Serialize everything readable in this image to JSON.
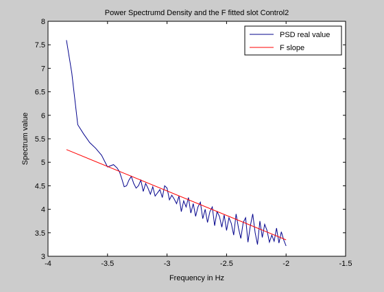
{
  "chart_data": {
    "type": "line",
    "title": "Power Spectrumd Density and the F fitted slot Control2",
    "xlabel": "Frequency in Hz",
    "ylabel": "Spectrum value",
    "xlim": [
      -4,
      -1.5
    ],
    "ylim": [
      3,
      8
    ],
    "x_ticks": [
      -4,
      -3.5,
      -3,
      -2.5,
      -2,
      -1.5
    ],
    "x_tick_labels": [
      "-4",
      "-3.5",
      "-3",
      "-2.5",
      "-2",
      "-1.5"
    ],
    "y_ticks": [
      3,
      3.5,
      4,
      4.5,
      5,
      5.5,
      6,
      6.5,
      7,
      7.5,
      8
    ],
    "y_tick_labels": [
      "3",
      "3.5",
      "4",
      "4.5",
      "5",
      "5.5",
      "6",
      "6.5",
      "7",
      "7.5",
      "8"
    ],
    "grid": false,
    "legend_position": "top-right",
    "series": [
      {
        "name": "PSD real value",
        "color": "#00008b",
        "x": [
          -3.845,
          -3.8,
          -3.75,
          -3.7,
          -3.65,
          -3.6,
          -3.55,
          -3.5,
          -3.47,
          -3.45,
          -3.42,
          -3.4,
          -3.38,
          -3.36,
          -3.34,
          -3.32,
          -3.3,
          -3.28,
          -3.26,
          -3.24,
          -3.22,
          -3.2,
          -3.18,
          -3.16,
          -3.14,
          -3.12,
          -3.1,
          -3.08,
          -3.06,
          -3.04,
          -3.02,
          -3.0,
          -2.98,
          -2.96,
          -2.94,
          -2.92,
          -2.9,
          -2.88,
          -2.86,
          -2.84,
          -2.82,
          -2.8,
          -2.78,
          -2.76,
          -2.74,
          -2.72,
          -2.7,
          -2.68,
          -2.66,
          -2.64,
          -2.62,
          -2.6,
          -2.58,
          -2.56,
          -2.54,
          -2.52,
          -2.5,
          -2.48,
          -2.46,
          -2.44,
          -2.42,
          -2.4,
          -2.38,
          -2.36,
          -2.34,
          -2.32,
          -2.3,
          -2.28,
          -2.26,
          -2.24,
          -2.22,
          -2.2,
          -2.18,
          -2.16,
          -2.14,
          -2.12,
          -2.1,
          -2.08,
          -2.06,
          -2.04,
          -2.02,
          -2.0
        ],
        "y": [
          7.6,
          6.9,
          5.8,
          5.6,
          5.42,
          5.3,
          5.15,
          4.9,
          4.93,
          4.95,
          4.88,
          4.8,
          4.65,
          4.48,
          4.5,
          4.62,
          4.7,
          4.55,
          4.45,
          4.5,
          4.62,
          4.38,
          4.55,
          4.45,
          4.32,
          4.48,
          4.28,
          4.35,
          4.42,
          4.25,
          4.5,
          4.45,
          4.2,
          4.3,
          4.22,
          4.12,
          4.28,
          3.95,
          4.18,
          4.05,
          4.25,
          3.92,
          4.12,
          3.85,
          4.05,
          4.15,
          3.8,
          4.0,
          3.72,
          3.95,
          4.05,
          3.65,
          3.95,
          3.85,
          3.62,
          3.88,
          3.55,
          3.82,
          3.7,
          3.45,
          3.9,
          3.6,
          3.38,
          3.72,
          3.82,
          3.3,
          3.65,
          3.9,
          3.5,
          3.25,
          3.75,
          3.4,
          3.68,
          3.55,
          3.3,
          3.45,
          3.32,
          3.6,
          3.28,
          3.52,
          3.35,
          3.22
        ]
      },
      {
        "name": "F slope",
        "color": "#ff0000",
        "x": [
          -3.845,
          -2.0
        ],
        "y": [
          5.27,
          3.35
        ]
      }
    ]
  }
}
